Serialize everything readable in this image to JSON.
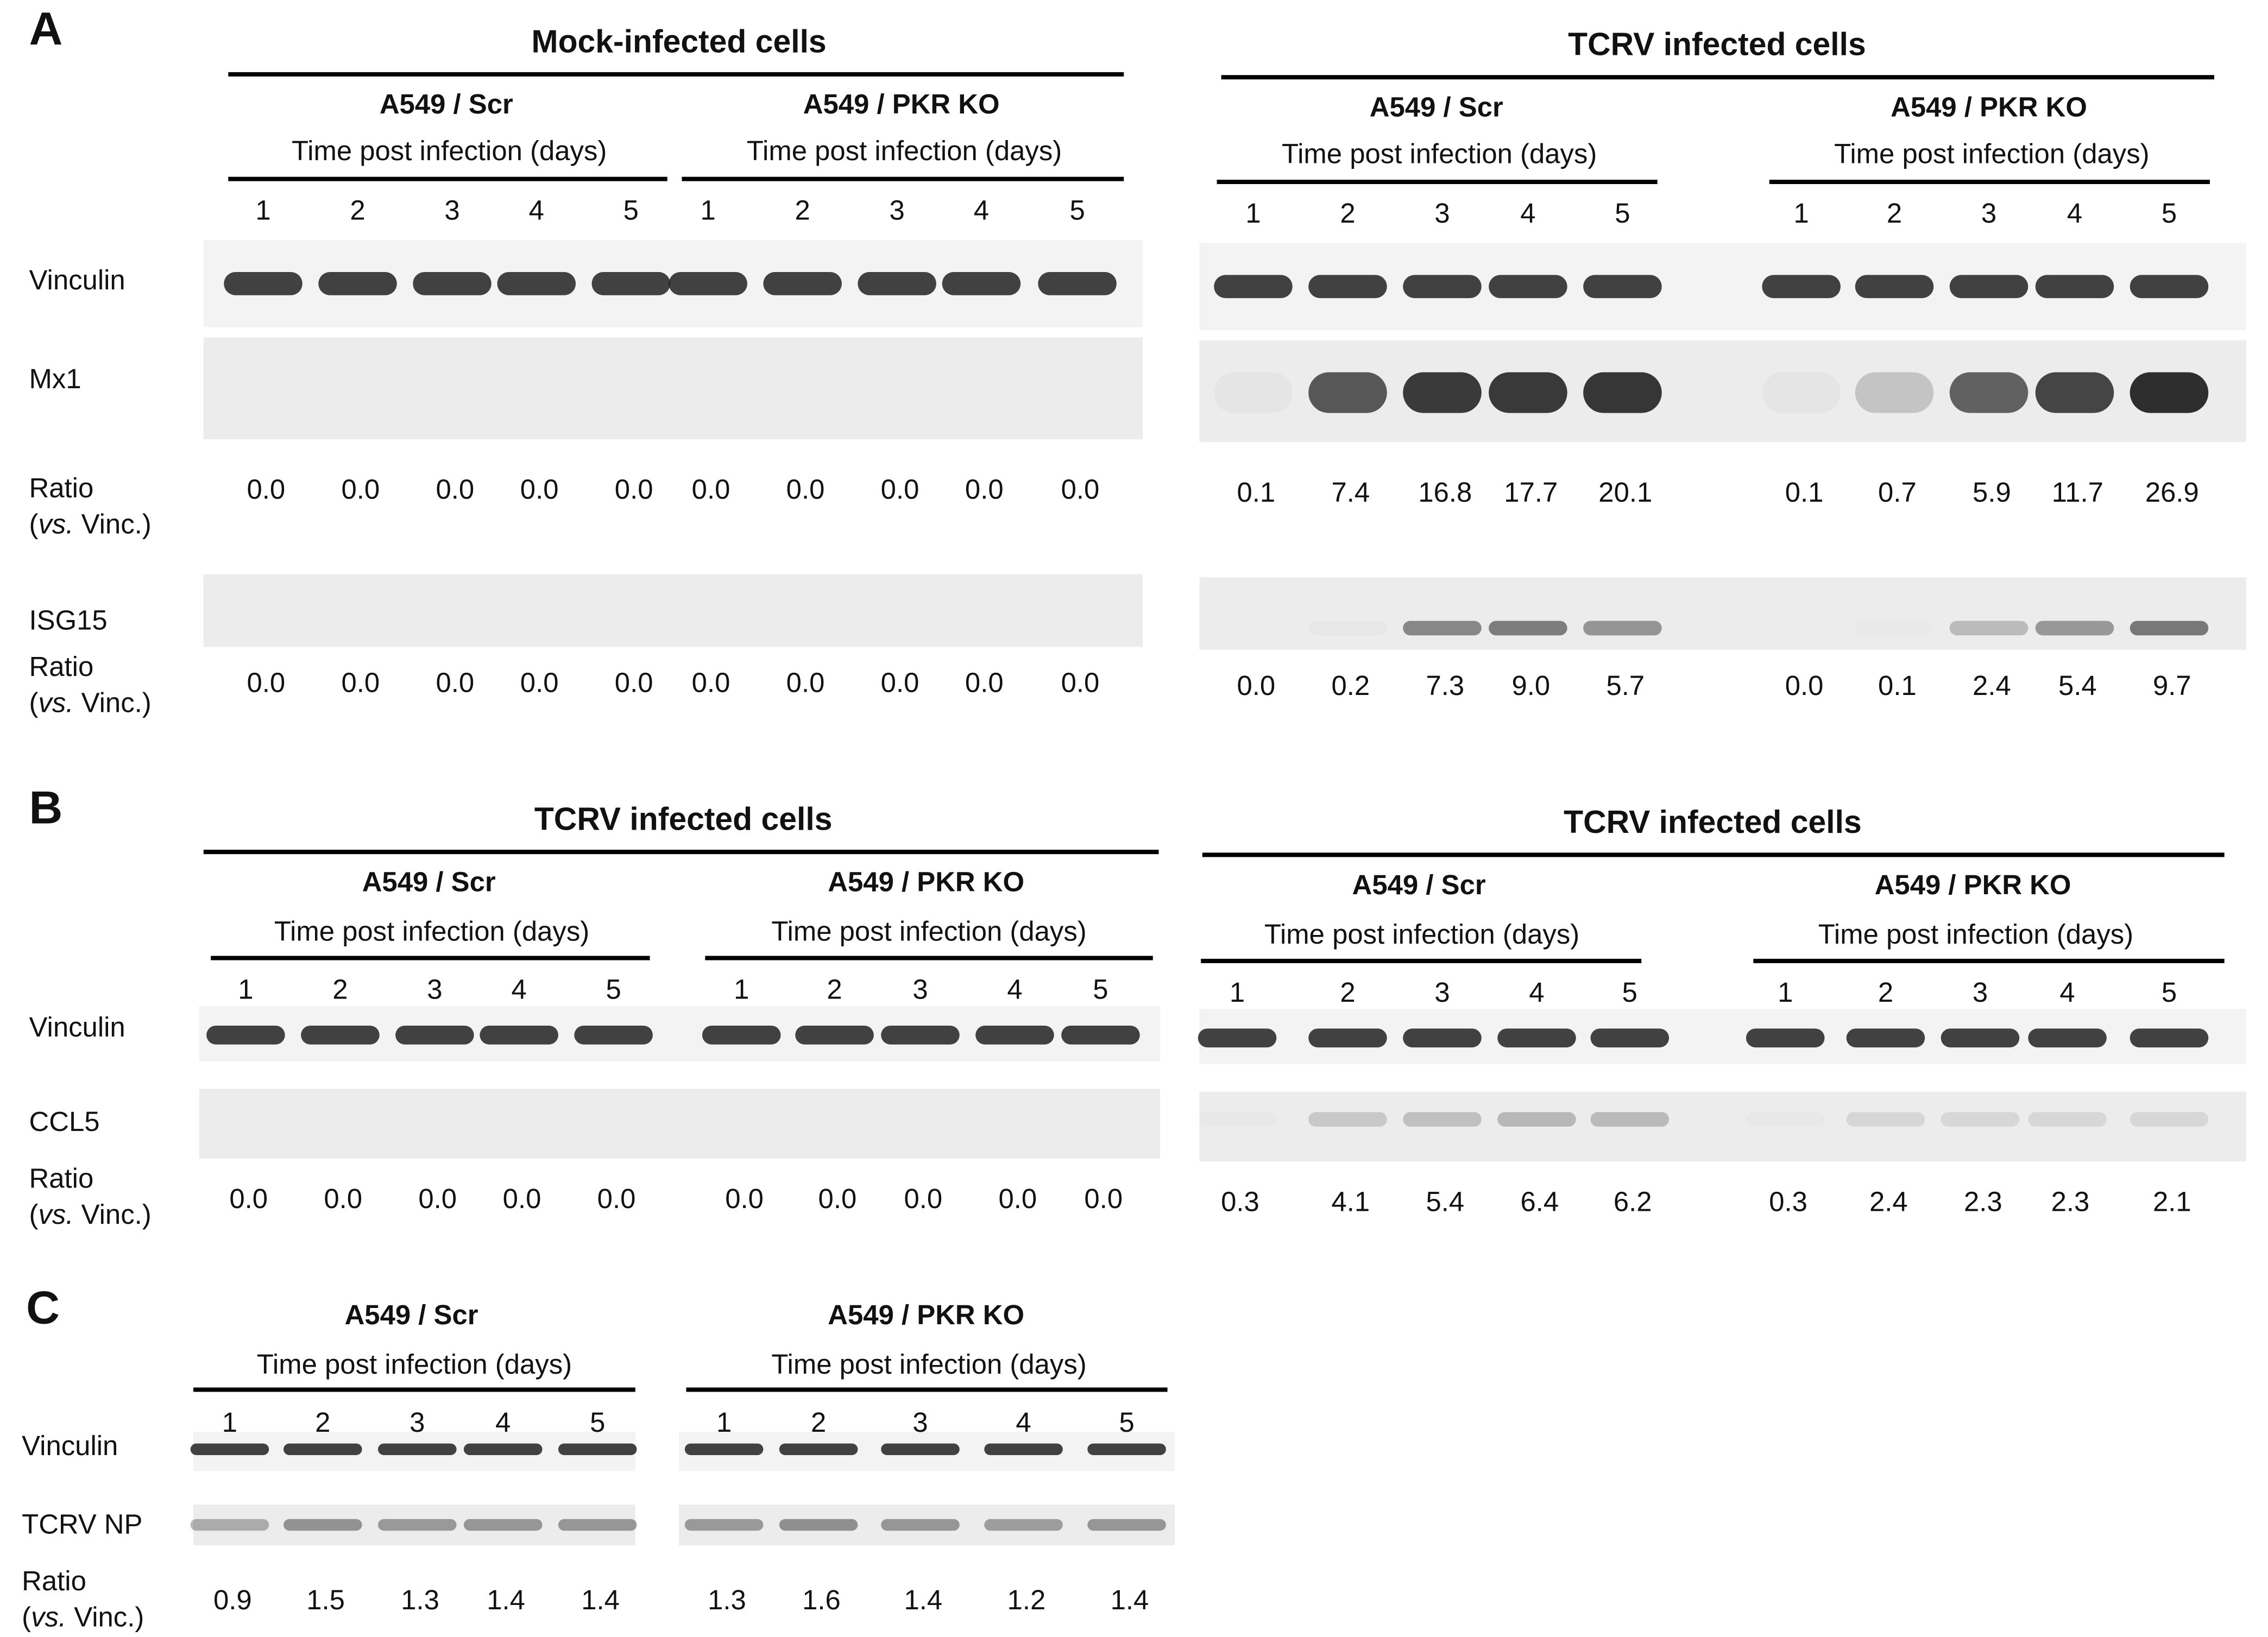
{
  "panels": [
    {
      "label": "A",
      "rows": [
        "Vinculin",
        "Mx1",
        "ISG15"
      ],
      "ratio_label": "Ratio",
      "ratio_note": [
        "(",
        "vs.",
        " Vinc.)"
      ],
      "groups": [
        {
          "title": "Mock-infected cells",
          "subgroups": [
            {
              "cell_line": "A549 / Scr",
              "axis_title": "Time post infection (days)",
              "lanes": [
                1,
                2,
                3,
                4,
                5
              ],
              "ratios": [
                [
                  "0.0",
                  "0.0",
                  "0.0",
                  "0.0",
                  "0.0"
                ],
                [
                  "0.0",
                  "0.0",
                  "0.0",
                  "0.0",
                  "0.0"
                ]
              ]
            },
            {
              "cell_line": "A549 / PKR KO",
              "axis_title": "Time post infection (days)",
              "lanes": [
                1,
                2,
                3,
                4,
                5
              ],
              "ratios": [
                [
                  "0.0",
                  "0.0",
                  "0.0",
                  "0.0",
                  "0.0"
                ],
                [
                  "0.0",
                  "0.0",
                  "0.0",
                  "0.0",
                  "0.0"
                ]
              ]
            }
          ]
        },
        {
          "title": "TCRV infected cells",
          "subgroups": [
            {
              "cell_line": "A549 / Scr",
              "axis_title": "Time post infection (days)",
              "lanes": [
                1,
                2,
                3,
                4,
                5
              ],
              "ratios": [
                [
                  "0.1",
                  "7.4",
                  "16.8",
                  "17.7",
                  "20.1"
                ],
                [
                  "0.0",
                  "0.2",
                  "7.3",
                  "9.0",
                  "5.7"
                ]
              ]
            },
            {
              "cell_line": "A549 / PKR KO",
              "axis_title": "Time post infection (days)",
              "lanes": [
                1,
                2,
                3,
                4,
                5
              ],
              "ratios": [
                [
                  "0.1",
                  "0.7",
                  "5.9",
                  "11.7",
                  "26.9"
                ],
                [
                  "0.0",
                  "0.1",
                  "2.4",
                  "5.4",
                  "9.7"
                ]
              ]
            }
          ]
        }
      ]
    },
    {
      "label": "B",
      "rows": [
        "Vinculin",
        "CCL5"
      ],
      "ratio_label": "Ratio",
      "ratio_note": [
        "(",
        "vs.",
        " Vinc.)"
      ],
      "groups": [
        {
          "title": "TCRV infected cells",
          "subgroups": [
            {
              "cell_line": "A549 / Scr",
              "axis_title": "Time post infection (days)",
              "lanes": [
                1,
                2,
                3,
                4,
                5
              ],
              "ratios": [
                [
                  "0.0",
                  "0.0",
                  "0.0",
                  "0.0",
                  "0.0"
                ]
              ]
            },
            {
              "cell_line": "A549 / PKR KO",
              "axis_title": "Time post infection (days)",
              "lanes": [
                1,
                2,
                3,
                4,
                5
              ],
              "ratios": [
                [
                  "0.0",
                  "0.0",
                  "0.0",
                  "0.0",
                  "0.0"
                ]
              ]
            }
          ]
        },
        {
          "title": "TCRV infected cells",
          "subgroups": [
            {
              "cell_line": "A549 / Scr",
              "axis_title": "Time post infection (days)",
              "lanes": [
                1,
                2,
                3,
                4,
                5
              ],
              "ratios": [
                [
                  "0.3",
                  "4.1",
                  "5.4",
                  "6.4",
                  "6.2"
                ]
              ]
            },
            {
              "cell_line": "A549 / PKR KO",
              "axis_title": "Time post infection (days)",
              "lanes": [
                1,
                2,
                3,
                4,
                5
              ],
              "ratios": [
                [
                  "0.3",
                  "2.4",
                  "2.3",
                  "2.3",
                  "2.1"
                ]
              ]
            }
          ]
        }
      ]
    },
    {
      "label": "C",
      "rows": [
        "Vinculin",
        "TCRV NP"
      ],
      "ratio_label": "Ratio",
      "ratio_note": [
        "(",
        "vs.",
        " Vinc.)"
      ],
      "groups": [
        {
          "subgroups": [
            {
              "cell_line": "A549 / Scr",
              "axis_title": "Time post infection (days)",
              "lanes": [
                1,
                2,
                3,
                4,
                5
              ],
              "ratios": [
                [
                  "0.9",
                  "1.5",
                  "1.3",
                  "1.4",
                  "1.4"
                ]
              ]
            },
            {
              "cell_line": "A549 / PKR KO",
              "axis_title": "Time post infection (days)",
              "lanes": [
                1,
                2,
                3,
                4,
                5
              ],
              "ratios": [
                [
                  "1.3",
                  "1.6",
                  "1.4",
                  "1.2",
                  "1.4"
                ]
              ]
            }
          ]
        }
      ]
    }
  ]
}
